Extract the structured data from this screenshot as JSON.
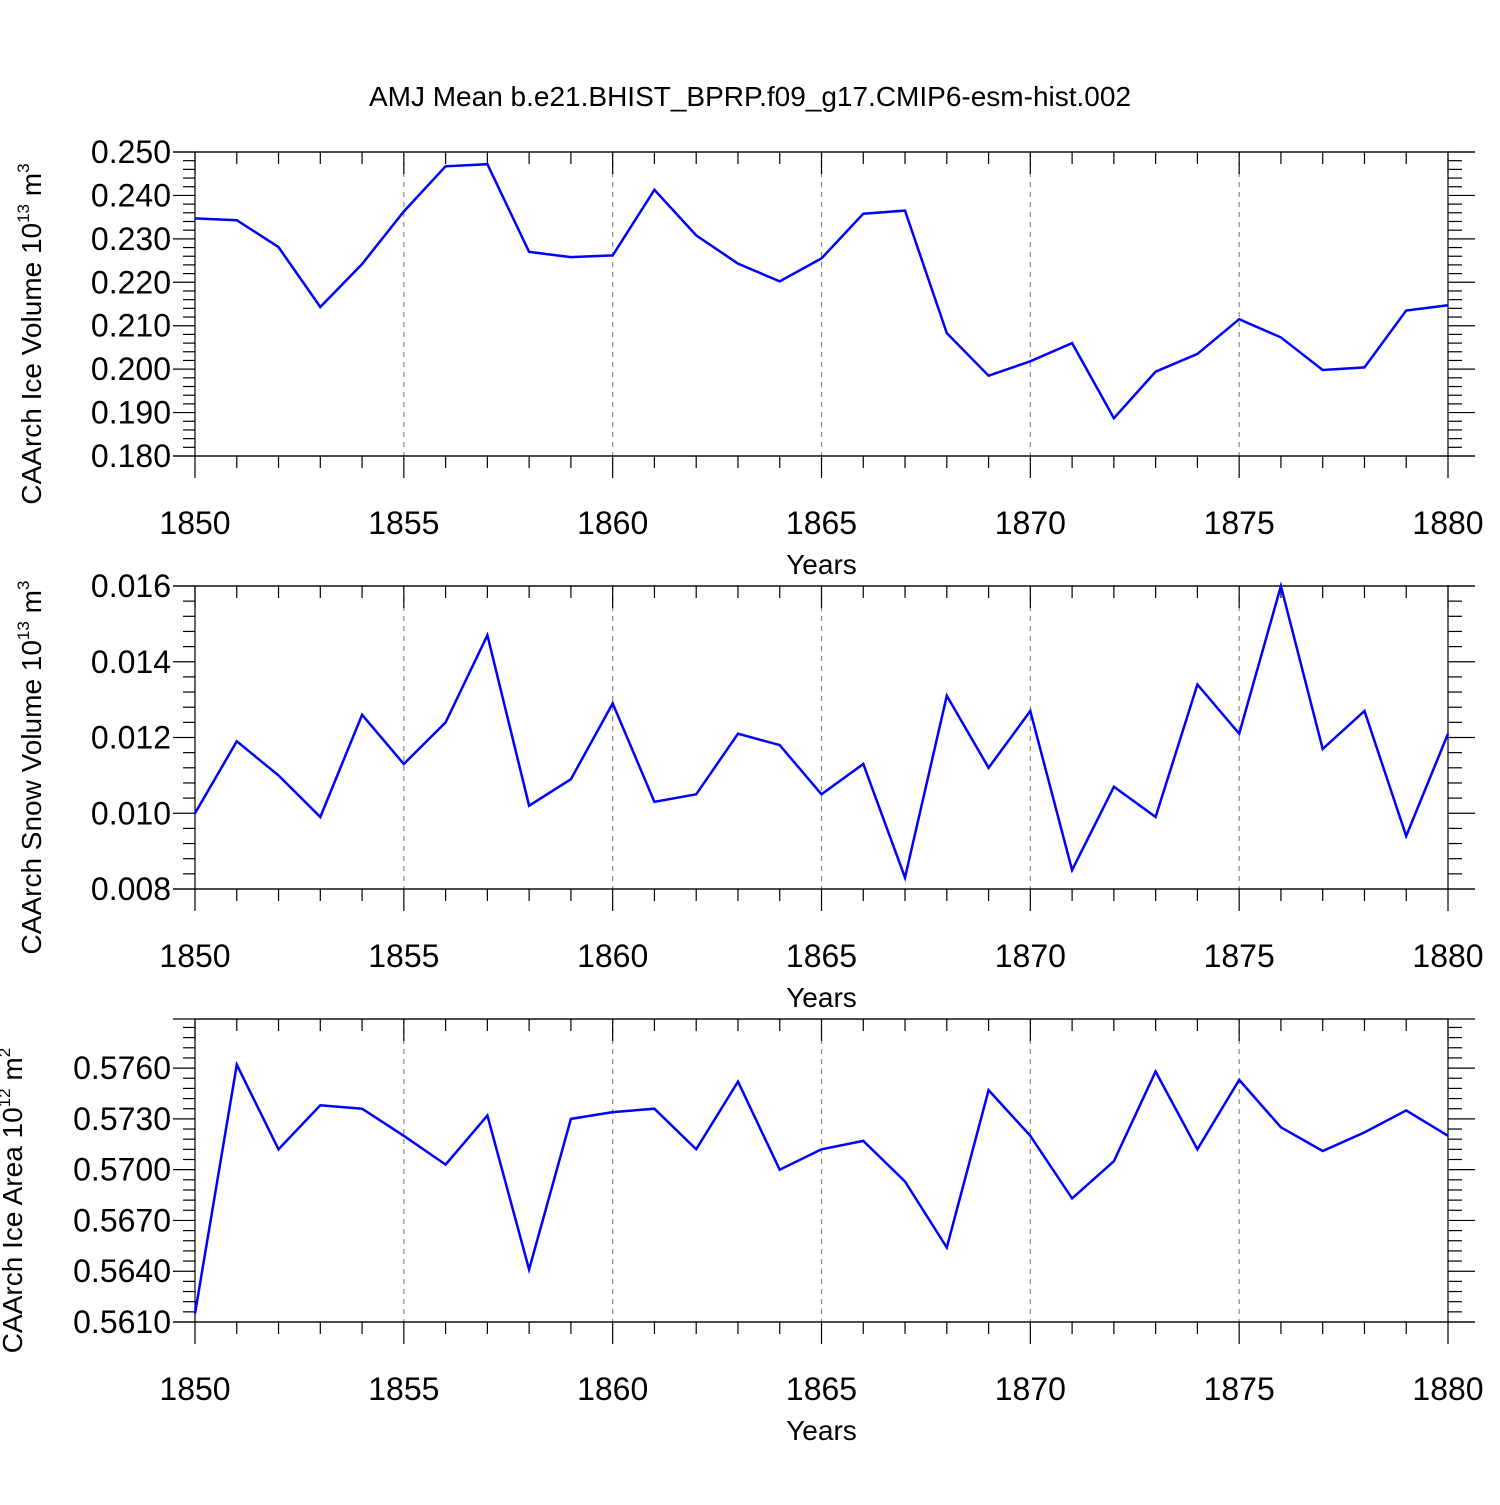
{
  "chart_data": [
    {
      "type": "line",
      "title": "AMJ Mean b.e21.BHIST_BPRP.f09_g17.CMIP6-esm-hist.002",
      "xlabel": "Years",
      "ylabel": {
        "text": "CAArch Ice Volume 10",
        "exp": "13",
        "unit": " m",
        "unit_exp": "3"
      },
      "xlim": [
        1850,
        1880
      ],
      "ylim": [
        0.18,
        0.25
      ],
      "x_ticks": [
        1850,
        1855,
        1860,
        1865,
        1870,
        1875,
        1880
      ],
      "y_ticks": [
        "0.180",
        "0.190",
        "0.200",
        "0.210",
        "0.220",
        "0.230",
        "0.240",
        "0.250"
      ],
      "y_tick_values": [
        0.18,
        0.19,
        0.2,
        0.21,
        0.22,
        0.23,
        0.24,
        0.25
      ],
      "x": [
        1850,
        1851,
        1852,
        1853,
        1854,
        1855,
        1856,
        1857,
        1858,
        1859,
        1860,
        1861,
        1862,
        1863,
        1864,
        1865,
        1866,
        1867,
        1868,
        1869,
        1870,
        1871,
        1872,
        1873,
        1874,
        1875,
        1876,
        1877,
        1878,
        1879,
        1880
      ],
      "series": [
        {
          "name": "CAArch Ice Volume",
          "color": "#0000ff",
          "values": [
            0.2347,
            0.2343,
            0.2281,
            0.2143,
            0.2242,
            0.2363,
            0.2467,
            0.2472,
            0.227,
            0.2258,
            0.2262,
            0.2413,
            0.2308,
            0.2243,
            0.2202,
            0.2255,
            0.2358,
            0.2365,
            0.2083,
            0.1985,
            0.2018,
            0.206,
            0.1887,
            0.1994,
            0.2035,
            0.2115,
            0.2073,
            0.1998,
            0.2004,
            0.2135,
            0.2147
          ]
        }
      ]
    },
    {
      "type": "line",
      "xlabel": "Years",
      "ylabel": {
        "text": "CAArch Snow Volume 10",
        "exp": "13",
        "unit": " m",
        "unit_exp": "3"
      },
      "xlim": [
        1850,
        1880
      ],
      "ylim": [
        0.008,
        0.016
      ],
      "x_ticks": [
        1850,
        1855,
        1860,
        1865,
        1870,
        1875,
        1880
      ],
      "y_ticks": [
        "0.008",
        "0.010",
        "0.012",
        "0.014",
        "0.016"
      ],
      "y_tick_values": [
        0.008,
        0.01,
        0.012,
        0.014,
        0.016
      ],
      "x": [
        1850,
        1851,
        1852,
        1853,
        1854,
        1855,
        1856,
        1857,
        1858,
        1859,
        1860,
        1861,
        1862,
        1863,
        1864,
        1865,
        1866,
        1867,
        1868,
        1869,
        1870,
        1871,
        1872,
        1873,
        1874,
        1875,
        1876,
        1877,
        1878,
        1879,
        1880
      ],
      "series": [
        {
          "name": "CAArch Snow Volume",
          "color": "#0000ff",
          "values": [
            0.01,
            0.0119,
            0.011,
            0.0099,
            0.0126,
            0.0113,
            0.0124,
            0.0147,
            0.0102,
            0.0109,
            0.0129,
            0.0103,
            0.0105,
            0.0121,
            0.0118,
            0.0105,
            0.0113,
            0.0083,
            0.0131,
            0.0112,
            0.0127,
            0.0085,
            0.0107,
            0.0099,
            0.0134,
            0.0121,
            0.016,
            0.0117,
            0.0127,
            0.0094,
            0.0121
          ]
        }
      ]
    },
    {
      "type": "line",
      "xlabel": "Years",
      "ylabel": {
        "text": "CAArch Ice Area 10",
        "exp": "12",
        "unit": " m",
        "unit_exp": "2"
      },
      "xlim": [
        1850,
        1880
      ],
      "ylim": [
        0.561,
        0.5789
      ],
      "x_ticks": [
        1850,
        1855,
        1860,
        1865,
        1870,
        1875,
        1880
      ],
      "y_ticks": [
        "0.5610",
        "0.5640",
        "0.5670",
        "0.5700",
        "0.5730",
        "0.5760"
      ],
      "y_tick_values": [
        0.561,
        0.564,
        0.567,
        0.57,
        0.573,
        0.576
      ],
      "x": [
        1850,
        1851,
        1852,
        1853,
        1854,
        1855,
        1856,
        1857,
        1858,
        1859,
        1860,
        1861,
        1862,
        1863,
        1864,
        1865,
        1866,
        1867,
        1868,
        1869,
        1870,
        1871,
        1872,
        1873,
        1874,
        1875,
        1876,
        1877,
        1878,
        1879,
        1880
      ],
      "series": [
        {
          "name": "CAArch Ice Area",
          "color": "#0000ff",
          "values": [
            0.5615,
            0.5762,
            0.5712,
            0.5738,
            0.5736,
            0.572,
            0.5703,
            0.5732,
            0.5641,
            0.573,
            0.5734,
            0.5736,
            0.5712,
            0.5752,
            0.57,
            0.5712,
            0.5717,
            0.5693,
            0.5654,
            0.5747,
            0.572,
            0.5683,
            0.5705,
            0.5758,
            0.5712,
            0.5753,
            0.5725,
            0.5711,
            0.5722,
            0.5735,
            0.572
          ]
        }
      ]
    }
  ]
}
